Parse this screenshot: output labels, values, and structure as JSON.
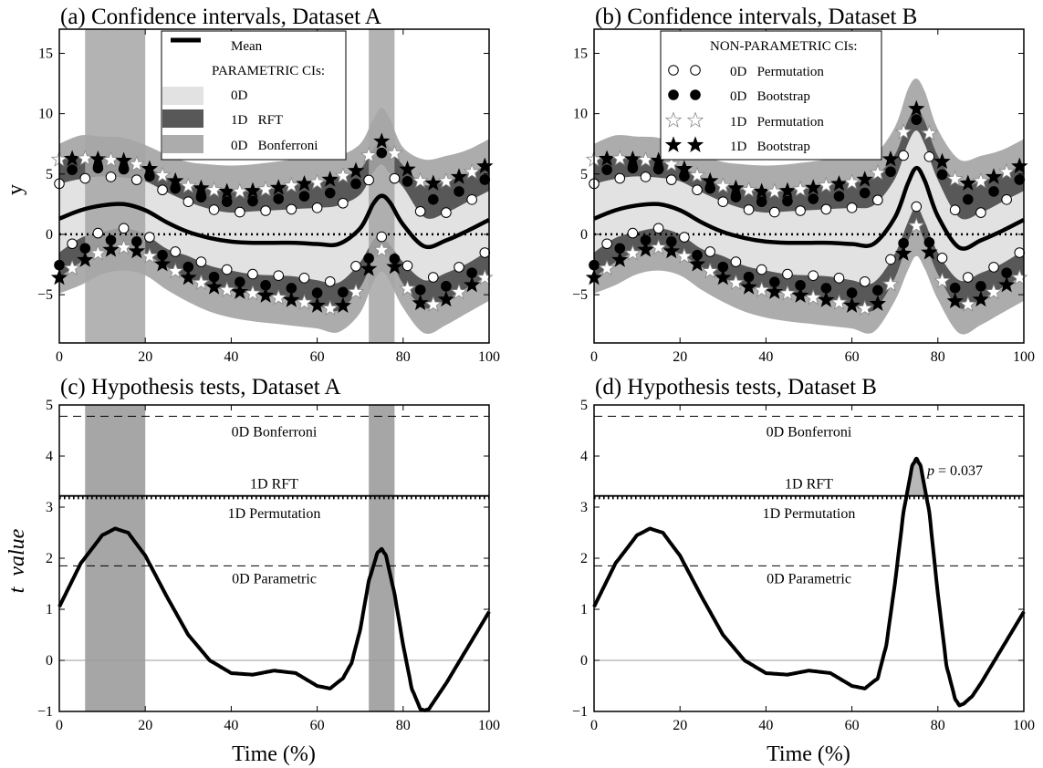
{
  "chart_data": [
    {
      "type": "line",
      "title": "(a) Confidence intervals, Dataset A",
      "xlabel": "",
      "ylabel": "y",
      "xlim": [
        0,
        100
      ],
      "ylim": [
        -9,
        17
      ],
      "xticks": [
        "0",
        "20",
        "40",
        "60",
        "80",
        "100"
      ],
      "yticks": [
        "−5",
        "0",
        "5",
        "10",
        "15"
      ],
      "x": [
        0,
        5,
        10,
        15,
        20,
        25,
        30,
        35,
        40,
        45,
        50,
        55,
        60,
        65,
        70,
        73,
        75,
        77,
        80,
        85,
        90,
        95,
        100
      ],
      "mean": [
        1.3,
        2.0,
        2.4,
        2.5,
        2.0,
        1.0,
        0.2,
        -0.3,
        -0.6,
        -0.7,
        -0.7,
        -0.7,
        -0.8,
        -0.8,
        0.5,
        2.5,
        3.2,
        2.6,
        0.8,
        -1.0,
        -0.5,
        0.3,
        1.2
      ],
      "mean_color": "#000000",
      "bands": [
        {
          "name": "Bonferroni",
          "lower": [
            -4.9,
            -4.2,
            -3.3,
            -3.0,
            -3.4,
            -4.6,
            -5.6,
            -6.4,
            -6.9,
            -7.2,
            -7.4,
            -7.6,
            -7.8,
            -8.1,
            -6.5,
            -4.0,
            -3.1,
            -4.0,
            -6.1,
            -8.2,
            -7.5,
            -6.5,
            -5.5
          ],
          "upper": [
            7.5,
            8.2,
            8.1,
            8.0,
            7.4,
            6.6,
            6.0,
            5.8,
            5.7,
            5.8,
            6.0,
            6.2,
            6.2,
            6.5,
            7.5,
            9.5,
            10.5,
            9.5,
            7.2,
            6.2,
            6.5,
            7.0,
            7.9
          ],
          "color": "#acacac"
        },
        {
          "name": "RFT",
          "lower": [
            -3.6,
            -2.3,
            -1.4,
            -1.1,
            -1.6,
            -2.7,
            -3.6,
            -4.3,
            -4.7,
            -4.9,
            -5.2,
            -5.5,
            -5.9,
            -6.3,
            -4.4,
            -2.1,
            -1.3,
            -2.0,
            -4.1,
            -6.1,
            -5.4,
            -4.4,
            -3.4
          ],
          "upper": [
            6.2,
            6.3,
            6.2,
            6.1,
            5.6,
            4.7,
            4.0,
            3.7,
            3.5,
            3.6,
            3.8,
            4.1,
            4.3,
            4.7,
            5.4,
            7.1,
            7.7,
            7.2,
            5.7,
            4.1,
            4.4,
            5.0,
            5.8
          ],
          "color": "#585858"
        },
        {
          "name": "0D",
          "lower": [
            -1.5,
            -0.3,
            0.2,
            0.5,
            0.0,
            -1.2,
            -1.8,
            -2.6,
            -3.0,
            -3.3,
            -3.4,
            -3.5,
            -3.8,
            -4.0,
            -2.3,
            -0.5,
            -0.2,
            -0.9,
            -2.3,
            -3.8,
            -3.2,
            -2.4,
            -1.3
          ],
          "upper": [
            4.2,
            4.6,
            4.8,
            4.7,
            4.4,
            3.5,
            2.7,
            2.1,
            1.8,
            1.9,
            2.0,
            2.1,
            2.2,
            2.4,
            3.3,
            5.1,
            5.8,
            5.0,
            3.9,
            1.4,
            1.8,
            2.7,
            3.6
          ],
          "color": "#e2e2e2"
        }
      ],
      "markers": [
        {
          "name": "0D Permutation",
          "symbol": "circle",
          "fill": "#ffffff",
          "upper_of": "0D",
          "lower_of": "0D",
          "row": "upper"
        },
        {
          "name": "0D Bootstrap",
          "symbol": "circle",
          "fill": "#000000",
          "upper_of": "0D",
          "lower_of": "0D",
          "row": "lower"
        },
        {
          "name": "1D Permutation",
          "symbol": "star",
          "fill": "#ffffff"
        },
        {
          "name": "1D Bootstrap",
          "symbol": "star",
          "fill": "#000000"
        }
      ],
      "marker_x": [
        0,
        3,
        6,
        9,
        12,
        15,
        18,
        21,
        24,
        27,
        30,
        33,
        36,
        39,
        42,
        45,
        48,
        51,
        54,
        57,
        60,
        63,
        66,
        69,
        72,
        75,
        78,
        81,
        84,
        87,
        90,
        93,
        96,
        99
      ],
      "shaded_x_ranges": [
        [
          6,
          20
        ],
        [
          72,
          78
        ]
      ],
      "shade_color": "#a6a6a6",
      "legend": {
        "position": "top-center",
        "items": [
          {
            "label": "Mean",
            "kind": "line",
            "color": "#000000"
          },
          {
            "label": "PARAMETRIC CIs:",
            "kind": "header"
          },
          {
            "label": "0D",
            "kind": "patch",
            "color": "#e2e2e2"
          },
          {
            "label": "1D   RFT",
            "kind": "patch",
            "color": "#585858"
          },
          {
            "label": "0D   Bonferroni",
            "kind": "patch",
            "color": "#acacac"
          }
        ]
      }
    },
    {
      "type": "line",
      "title": "(b) Confidence intervals, Dataset B",
      "xlabel": "",
      "ylabel": "",
      "xlim": [
        0,
        100
      ],
      "ylim": [
        -9,
        17
      ],
      "xticks": [
        "0",
        "20",
        "40",
        "60",
        "80",
        "100"
      ],
      "yticks": [
        "−5",
        "0",
        "5",
        "10",
        "15"
      ],
      "x": [
        0,
        5,
        10,
        15,
        20,
        25,
        30,
        35,
        40,
        45,
        50,
        55,
        60,
        65,
        70,
        73,
        75,
        77,
        80,
        85,
        90,
        95,
        100
      ],
      "mean": [
        1.3,
        2.0,
        2.4,
        2.5,
        2.0,
        1.0,
        0.2,
        -0.3,
        -0.6,
        -0.7,
        -0.7,
        -0.7,
        -0.8,
        -0.8,
        1.4,
        4.2,
        5.5,
        4.4,
        1.5,
        -1.1,
        -0.5,
        0.3,
        1.2
      ],
      "mean_color": "#000000",
      "bands": [
        {
          "name": "Bonferroni",
          "lower": [
            -4.9,
            -4.2,
            -3.3,
            -3.0,
            -3.4,
            -4.6,
            -5.6,
            -6.4,
            -6.9,
            -7.2,
            -7.4,
            -7.6,
            -7.8,
            -8.1,
            -5.5,
            -3.0,
            -1.8,
            -2.9,
            -5.4,
            -8.2,
            -7.5,
            -6.5,
            -5.5
          ],
          "upper": [
            7.5,
            8.2,
            8.1,
            8.0,
            7.4,
            6.6,
            6.0,
            5.8,
            5.7,
            5.8,
            6.0,
            6.2,
            6.2,
            6.5,
            8.9,
            12.0,
            12.9,
            11.8,
            8.7,
            6.2,
            6.5,
            7.0,
            7.9
          ],
          "color": "#acacac"
        },
        {
          "name": "RFT",
          "lower": [
            -3.6,
            -2.3,
            -1.4,
            -1.1,
            -1.6,
            -2.7,
            -3.6,
            -4.3,
            -4.7,
            -4.9,
            -5.2,
            -5.5,
            -5.9,
            -6.3,
            -3.6,
            -0.6,
            0.7,
            -0.6,
            -3.3,
            -6.1,
            -5.4,
            -4.4,
            -3.4
          ],
          "upper": [
            6.2,
            6.3,
            6.2,
            6.1,
            5.6,
            4.7,
            4.0,
            3.7,
            3.5,
            3.6,
            3.8,
            4.1,
            4.3,
            4.7,
            6.6,
            9.4,
            10.4,
            9.3,
            6.5,
            4.1,
            4.4,
            5.0,
            5.8
          ],
          "color": "#585858"
        },
        {
          "name": "0D",
          "lower": [
            -1.5,
            -0.3,
            0.2,
            0.5,
            0.0,
            -1.2,
            -1.8,
            -2.6,
            -3.0,
            -3.3,
            -3.4,
            -3.5,
            -3.8,
            -4.0,
            -1.6,
            1.0,
            2.3,
            1.0,
            -1.5,
            -3.8,
            -3.2,
            -2.4,
            -1.3
          ],
          "upper": [
            4.2,
            4.6,
            4.8,
            4.7,
            4.4,
            3.5,
            2.7,
            2.1,
            1.8,
            1.9,
            2.0,
            2.1,
            2.2,
            2.4,
            4.6,
            7.5,
            8.6,
            7.4,
            4.5,
            1.4,
            1.8,
            2.7,
            3.6
          ],
          "color": "#e2e2e2"
        }
      ],
      "marker_x": [
        0,
        3,
        6,
        9,
        12,
        15,
        18,
        21,
        24,
        27,
        30,
        33,
        36,
        39,
        42,
        45,
        48,
        51,
        54,
        57,
        60,
        63,
        66,
        69,
        72,
        75,
        78,
        81,
        84,
        87,
        90,
        93,
        96,
        99
      ],
      "shaded_x_ranges": [],
      "legend": {
        "position": "top-center",
        "items": [
          {
            "label": "NON-PARAMETRIC CIs:",
            "kind": "header"
          },
          {
            "label": "0D   Permutation",
            "kind": "marker",
            "symbol": "circle",
            "fill": "#ffffff"
          },
          {
            "label": "0D   Bootstrap",
            "kind": "marker",
            "symbol": "circle",
            "fill": "#000000"
          },
          {
            "label": "1D   Permutation",
            "kind": "marker",
            "symbol": "star",
            "fill": "#ffffff"
          },
          {
            "label": "1D   Bootstrap",
            "kind": "marker",
            "symbol": "star",
            "fill": "#000000"
          }
        ]
      }
    },
    {
      "type": "line",
      "title": "(c) Hypothesis tests, Dataset A",
      "xlabel": "Time (%)",
      "ylabel": "t  value",
      "xlim": [
        0,
        100
      ],
      "ylim": [
        -1,
        5
      ],
      "xticks": [
        "0",
        "20",
        "40",
        "60",
        "80",
        "100"
      ],
      "yticks": [
        "−1",
        "0",
        "1",
        "2",
        "3",
        "4",
        "5"
      ],
      "x": [
        0,
        5,
        10,
        13,
        16,
        20,
        25,
        30,
        35,
        40,
        45,
        50,
        55,
        60,
        63,
        66,
        68,
        70,
        72,
        74,
        75,
        76,
        78,
        80,
        82,
        84,
        85,
        86,
        88,
        90,
        95,
        100
      ],
      "y": [
        1.05,
        1.9,
        2.45,
        2.58,
        2.5,
        2.05,
        1.25,
        0.5,
        0.0,
        -0.25,
        -0.28,
        -0.2,
        -0.25,
        -0.5,
        -0.55,
        -0.35,
        -0.05,
        0.6,
        1.55,
        2.1,
        2.18,
        2.05,
        1.3,
        0.3,
        -0.55,
        -0.95,
        -0.98,
        -0.95,
        -0.7,
        -0.45,
        0.25,
        0.95
      ],
      "thresholds": [
        {
          "label": "0D Bonferroni",
          "value": 4.78,
          "style": "dashed"
        },
        {
          "label": "1D RFT",
          "value": 3.22,
          "style": "solid"
        },
        {
          "label": "1D Permutation",
          "value": 3.18,
          "style": "dotted"
        },
        {
          "label": "0D Parametric",
          "value": 1.85,
          "style": "dashed"
        }
      ],
      "shaded_x_ranges": [
        [
          6,
          20
        ],
        [
          72,
          78
        ]
      ],
      "shade_color": "#a6a6a6"
    },
    {
      "type": "line",
      "title": "(d) Hypothesis tests, Dataset B",
      "xlabel": "Time (%)",
      "ylabel": "",
      "xlim": [
        0,
        100
      ],
      "ylim": [
        -1,
        5
      ],
      "xticks": [
        "0",
        "20",
        "40",
        "60",
        "80",
        "100"
      ],
      "yticks": [
        "−1",
        "0",
        "1",
        "2",
        "3",
        "4",
        "5"
      ],
      "x": [
        0,
        5,
        10,
        13,
        16,
        20,
        25,
        30,
        35,
        40,
        45,
        50,
        55,
        60,
        63,
        66,
        68,
        70,
        72,
        74,
        75,
        76,
        78,
        80,
        82,
        84,
        85,
        86,
        88,
        90,
        95,
        100
      ],
      "y": [
        1.05,
        1.9,
        2.45,
        2.58,
        2.5,
        2.05,
        1.25,
        0.5,
        0.0,
        -0.25,
        -0.28,
        -0.2,
        -0.25,
        -0.5,
        -0.55,
        -0.35,
        0.3,
        1.5,
        2.9,
        3.8,
        3.95,
        3.8,
        2.9,
        1.3,
        -0.1,
        -0.75,
        -0.88,
        -0.85,
        -0.7,
        -0.45,
        0.25,
        0.95
      ],
      "thresholds": [
        {
          "label": "0D Bonferroni",
          "value": 4.78,
          "style": "dashed"
        },
        {
          "label": "1D RFT",
          "value": 3.22,
          "style": "solid"
        },
        {
          "label": "1D Permutation",
          "value": 3.18,
          "style": "dotted"
        },
        {
          "label": "0D Parametric",
          "value": 1.85,
          "style": "dashed"
        }
      ],
      "supra_threshold_fill": {
        "threshold": 3.22,
        "color": "#b8b8b8"
      },
      "annotation": {
        "prefix": "p",
        "text": " = 0.037",
        "x": 78,
        "y": 3.55
      }
    }
  ]
}
